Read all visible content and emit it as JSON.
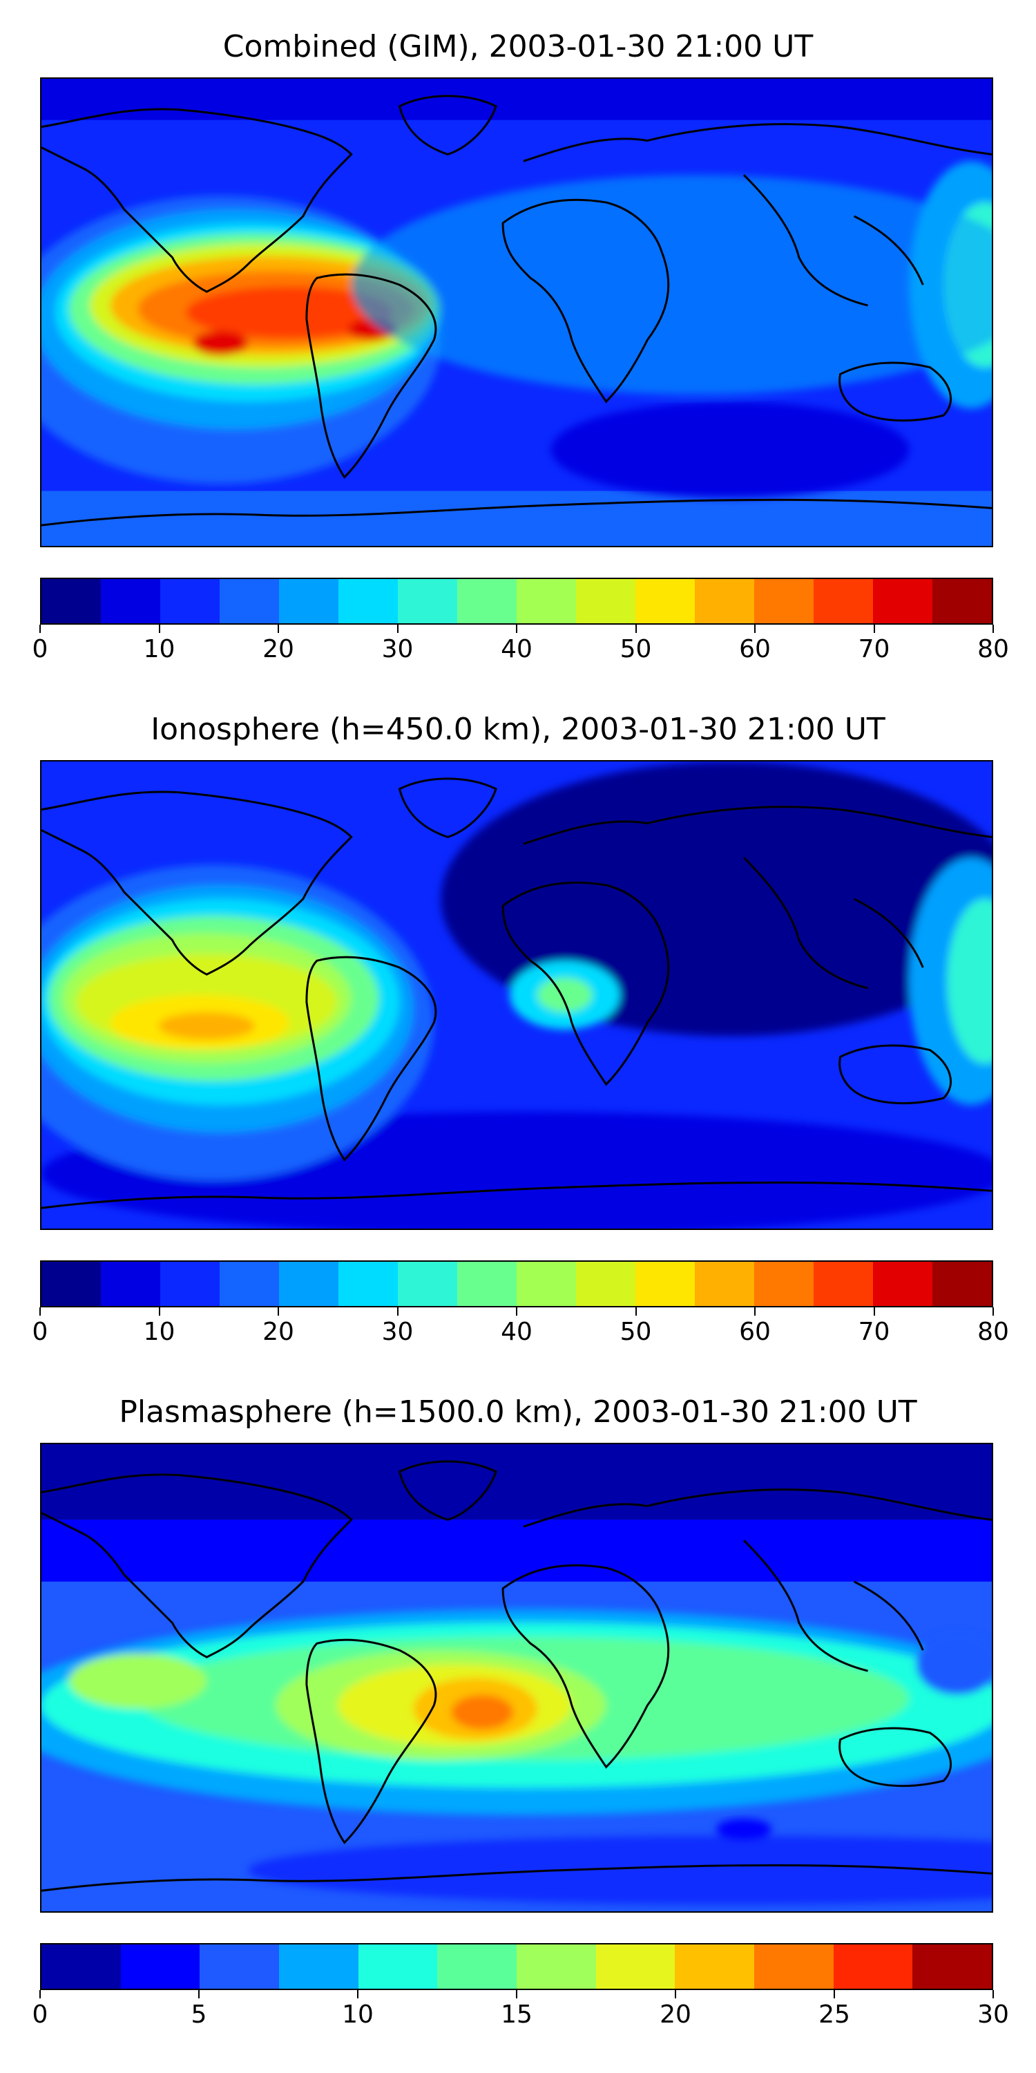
{
  "panels": [
    {
      "title": "Combined (GIM), 2003-01-30 21:00 UT",
      "colorbar": {
        "colors": [
          "#00008f",
          "#0000e3",
          "#0a28ff",
          "#1464ff",
          "#00a0ff",
          "#00dcff",
          "#2ef5d6",
          "#69ff8f",
          "#a3ff52",
          "#d5f51e",
          "#ffe600",
          "#ffb000",
          "#ff7800",
          "#ff3c00",
          "#e30000",
          "#a00000"
        ],
        "ticks": [
          "0",
          "10",
          "20",
          "30",
          "40",
          "50",
          "60",
          "70",
          "80"
        ]
      },
      "map_blobs": [
        {
          "desc": "high",
          "color": "#ff7800"
        },
        {
          "desc": "peak",
          "color": "#e30000"
        }
      ]
    },
    {
      "title": "Ionosphere  (h=450.0 km), 2003-01-30 21:00 UT",
      "colorbar": {
        "colors": [
          "#00008f",
          "#0000e3",
          "#0a28ff",
          "#1464ff",
          "#00a0ff",
          "#00dcff",
          "#2ef5d6",
          "#69ff8f",
          "#a3ff52",
          "#d5f51e",
          "#ffe600",
          "#ffb000",
          "#ff7800",
          "#ff3c00",
          "#e30000",
          "#a00000"
        ],
        "ticks": [
          "0",
          "10",
          "20",
          "30",
          "40",
          "50",
          "60",
          "70",
          "80"
        ]
      }
    },
    {
      "title": "Plasmasphere (h=1500.0 km), 2003-01-30 21:00 UT",
      "colorbar": {
        "colors": [
          "#0000a8",
          "#0000ff",
          "#1e5aff",
          "#00a8ff",
          "#1effe0",
          "#5aff9a",
          "#a0ff5a",
          "#e6f51e",
          "#ffc000",
          "#ff7800",
          "#ff2800",
          "#a80000"
        ],
        "ticks": [
          "0",
          "5",
          "10",
          "15",
          "20",
          "25",
          "30"
        ]
      }
    }
  ]
}
